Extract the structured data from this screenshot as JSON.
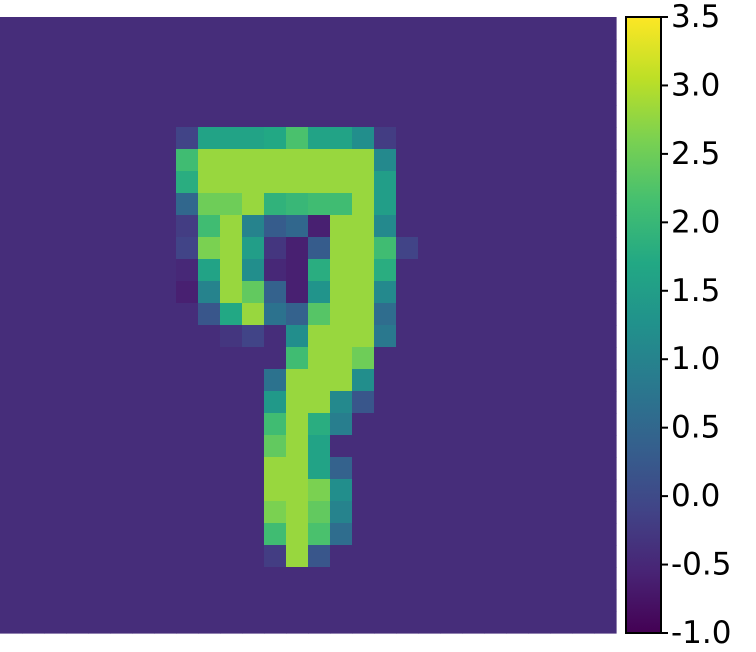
{
  "chart_data": {
    "type": "heatmap",
    "title": "",
    "xlabel": "",
    "ylabel": "",
    "grid": false,
    "axes_visible": false,
    "colormap": "viridis",
    "vmin": -1.0,
    "vmax": 3.5,
    "background_value": -0.42,
    "shape": [
      28,
      28
    ],
    "z_rows_from_row_5": [
      "0,0,0,0,0,0,0,0,-0.1,1.6,1.6,1.6,1.7,2.2,1.6,1.6,1.2,-0.2,0,0,0,0,0,0,0,0,0,0",
      "0,0,0,0,0,0,0,0,2.1,2.8,2.8,2.8,2.8,2.8,2.8,2.8,2.8,1.1,0,0,0,0,0,0,0,0,0,0",
      "0,0,0,0,0,0,0,0,1.8,2.8,2.8,2.8,2.8,2.8,2.8,2.8,2.8,1.5,0,0,0,0,0,0,0,0,0,0",
      "0,0,0,0,0,0,0,0,0.5,2.5,2.5,2.8,1.9,2.0,2.1,2.1,2.8,1.5,0,0,0,0,0,0,0,0,0,0",
      "0,0,0,0,0,0,0,0,-0.2,2.1,2.8,1.0,0.3,0.5,-0.6,2.8,2.8,1.1,0,0,0,0,0,0,0,0,0,0",
      "0,0,0,0,0,0,0,0,-0.1,2.6,2.8,1.5,-0.3,-0.6,0.3,2.8,2.8,2.1,-0.1,0,0,0,0,0,0,0,0,0",
      "0,0,0,0,0,0,0,0,-0.5,1.6,2.8,1.2,-0.5,-0.6,1.8,2.8,2.8,1.8,0,0,0,0,0,0,0,0,0,0",
      "0,0,0,0,0,0,0,0,-0.6,1.0,2.8,2.4,0.4,-0.6,1.3,2.8,2.8,1.1,0,0,0,0,0,0,0,0,0,0",
      "0,0,0,0,0,0,0,0,0,0.2,1.7,2.8,0.7,0.4,2.3,2.8,2.8,0.6,0,0,0,0,0,0,0,0,0,0",
      "0,0,0,0,0,0,0,0,0,0,-0.3,-0.1,0,1.2,2.8,2.8,2.8,0.8,0,0,0,0,0,0,0,0,0,0",
      "0,0,0,0,0,0,0,0,0,0,0,0,0,2.1,2.8,2.8,2.5,0,0,0,0,0,0,0,0,0,0,0",
      "0,0,0,0,0,0,0,0,0,0,0,0,0.7,2.8,2.8,2.8,1.2,0,0,0,0,0,0,0,0,0,0,0",
      "0,0,0,0,0,0,0,0,0,0,0,0,1.4,2.8,2.8,1.1,0.2,0,0,0,0,0,0,0,0,0,0,0",
      "0,0,0,0,0,0,0,0,0,0,0,0,2.1,2.8,1.8,0.9,0,0,0,0,0,0,0,0,0,0,0,0",
      "0,0,0,0,0,0,0,0,0,0,0,0,2.4,2.8,1.6,0,0,0,0,0,0,0,0,0,0,0,0,0",
      "0,0,0,0,0,0,0,0,0,0,0,0,2.8,2.8,1.6,0.4,0,0,0,0,0,0,0,0,0,0,0,0",
      "0,0,0,0,0,0,0,0,0,0,0,0,2.8,2.8,2.6,1.2,0,0,0,0,0,0,0,0,0,0,0,0",
      "0,0,0,0,0,0,0,0,0,0,0,0,2.6,2.8,2.4,1.0,0,0,0,0,0,0,0,0,0,0,0,0",
      "0,0,0,0,0,0,0,0,0,0,0,0,2.1,2.8,2.2,0.6,0,0,0,0,0,0,0,0,0,0,0,0",
      "0,0,0,0,0,0,0,0,0,0,0,0,-0.2,2.8,0.2,0,0,0,0,0,0,0,0,0,0,0,0,0"
    ],
    "colorbar": {
      "ticks": [
        "3.5",
        "3.0",
        "2.5",
        "2.0",
        "1.5",
        "1.0",
        "0.5",
        "0.0",
        "-0.5",
        "-1.0"
      ],
      "tick_values": [
        3.5,
        3.0,
        2.5,
        2.0,
        1.5,
        1.0,
        0.5,
        0.0,
        -0.5,
        -1.0
      ],
      "range": [
        -1.0,
        3.5
      ]
    }
  }
}
